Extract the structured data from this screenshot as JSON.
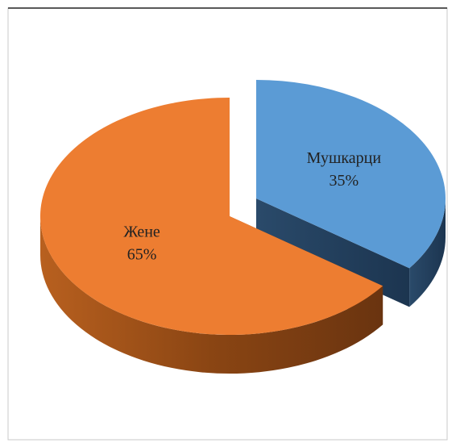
{
  "chart_data": {
    "type": "pie3d",
    "categories": [
      "Мушкарци",
      "Жене"
    ],
    "values": [
      35,
      65
    ],
    "value_labels": [
      "35%",
      "65%"
    ],
    "colors": [
      "#5b9bd5",
      "#ed7d31"
    ]
  }
}
